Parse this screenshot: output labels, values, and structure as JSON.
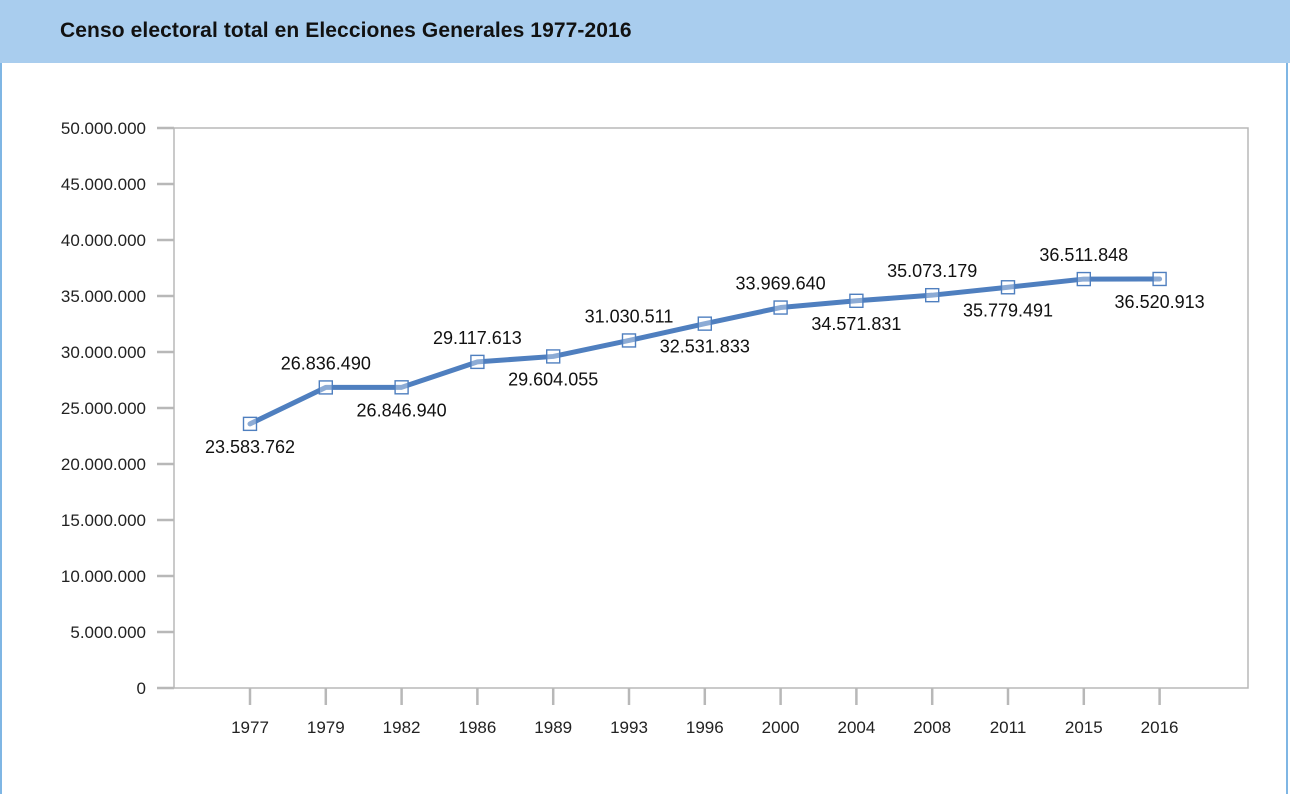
{
  "title": "Censo electoral total en Elecciones Generales 1977-2016",
  "colors": {
    "header_bg": "#a9cdee",
    "frame": "#7fb6e4",
    "line": "#4f7fbf",
    "axis": "#b8b8b8"
  },
  "chart_data": {
    "type": "line",
    "title": "Censo electoral total en Elecciones Generales 1977-2016",
    "xlabel": "",
    "ylabel": "",
    "ylim": [
      0,
      50000000
    ],
    "grid": false,
    "yticks": [
      "0",
      "5.000.000",
      "10.000.000",
      "15.000.000",
      "20.000.000",
      "25.000.000",
      "30.000.000",
      "35.000.000",
      "40.000.000",
      "45.000.000",
      "50.000.000"
    ],
    "categories": [
      "1977",
      "1979",
      "1982",
      "1986",
      "1989",
      "1993",
      "1996",
      "2000",
      "2004",
      "2008",
      "2011",
      "2015",
      "2016"
    ],
    "series": [
      {
        "values": [
          23583762,
          26836490,
          26846940,
          29117613,
          29604055,
          31030511,
          32531833,
          33969640,
          34571831,
          35073179,
          35779491,
          36511848,
          36520913
        ],
        "labels": [
          "23.583.762",
          "26.836.490",
          "26.846.940",
          "29.117.613",
          "29.604.055",
          "31.030.511",
          "32.531.833",
          "33.969.640",
          "34.571.831",
          "35.073.179",
          "35.779.491",
          "36.511.848",
          "36.520.913"
        ],
        "label_positions": [
          "below",
          "above",
          "below",
          "above",
          "below",
          "above",
          "below",
          "above",
          "below",
          "above",
          "below",
          "above",
          "below"
        ]
      }
    ]
  }
}
